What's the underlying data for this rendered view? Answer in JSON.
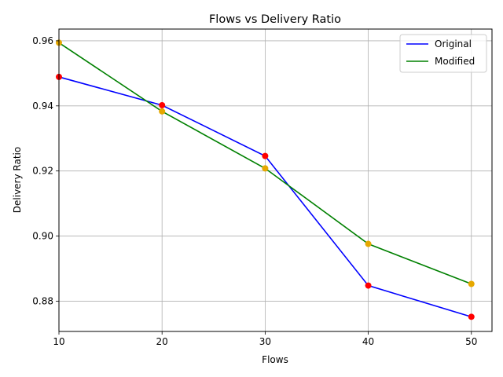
{
  "chart_data": {
    "type": "line",
    "title": "Flows vs Delivery Ratio",
    "xlabel": "Flows",
    "ylabel": "Delivery Ratio",
    "xlim": [
      10,
      52
    ],
    "ylim": [
      0.8707,
      0.9636
    ],
    "x": [
      10,
      20,
      30,
      40,
      50
    ],
    "x_ticks": [
      10,
      20,
      30,
      40,
      50
    ],
    "y_ticks": [
      0.88,
      0.9,
      0.92,
      0.94,
      0.96
    ],
    "y_tick_labels": [
      "0.88",
      "0.90",
      "0.92",
      "0.94",
      "0.96"
    ],
    "grid": true,
    "legend_position": "top-right",
    "series": [
      {
        "name": "Original",
        "values": [
          0.9489,
          0.9402,
          0.9246,
          0.8848,
          0.8752
        ],
        "line_color": "#0000ff",
        "marker_color": "#ff0000"
      },
      {
        "name": "Modified",
        "values": [
          0.9594,
          0.9383,
          0.9208,
          0.8976,
          0.8853
        ],
        "line_color": "#008000",
        "marker_color": "#e6a800"
      }
    ]
  }
}
